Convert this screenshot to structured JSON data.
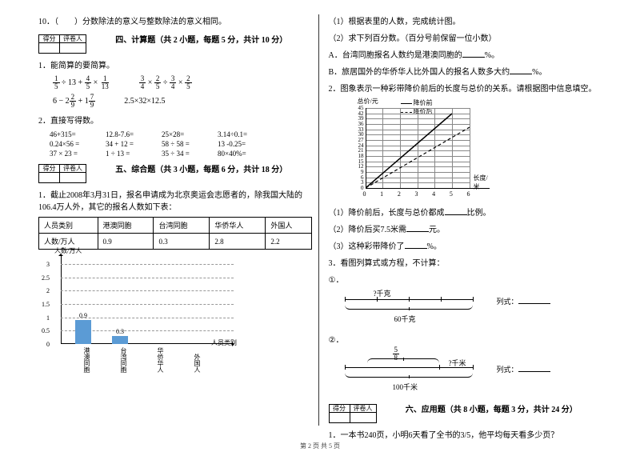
{
  "q10": "10．（　　）分数除法的意义与整数除法的意义相同。",
  "scorebox": {
    "c1": "得分",
    "c2": "评卷人"
  },
  "section4": "四、计算题（共 2 小题，每题 5 分，共计 10 分）",
  "s4q1": "1．能简算的要简算。",
  "s4q2": "2．直接写得数。",
  "expr_right1": "2.5×32×12.5",
  "calc_rows": [
    [
      "46+315=",
      "12.8-7.6=",
      "25×28=",
      " 3.14÷0.1="
    ],
    [
      "0.24×56 =",
      " 34 + 12 =",
      " 58 ÷ 58 =",
      " 13 -0.25="
    ],
    [
      "37 × 23 =",
      " 1 ÷ 13 =",
      " 35 ÷ 34 =",
      " 80×40%="
    ]
  ],
  "section5": "五、综合题（共 3 小题，每题 6 分，共计 18 分）",
  "s5q1": "1．截止2008年3月31日，报名申请成为北京奥运会志愿者的，除我国大陆的106.4万人外，其它的报名人数如下表：",
  "table5": {
    "headers": [
      "人员类别",
      "港澳同胞",
      "台湾同胞",
      "华侨华人",
      "外国人"
    ],
    "row": [
      "人数/万人",
      "0.9",
      "0.3",
      "2.8",
      "2.2"
    ]
  },
  "bar_chart": {
    "y_label": "人数/万人",
    "x_label": "人员类别",
    "y_ticks": [
      "0",
      "0.5",
      "1",
      "1.5",
      "2",
      "2.5",
      "3"
    ],
    "categories": [
      "港澳同胞",
      "台湾同胞",
      "华侨华人",
      "外国人"
    ],
    "values": [
      0.9,
      0.3,
      null,
      null
    ],
    "value_labels": [
      "0.9",
      "0.3",
      "",
      ""
    ],
    "bar_color": "#5b9bd5",
    "y_max": 3
  },
  "right": {
    "q1_sub": [
      "（1）根据表里的人数，完成统计图。",
      "（2）求下列百分数。（百分号前保留一位小数）",
      "A．台湾同胞报名人数约是港澳同胞的______%。",
      "B．旅居国外的华侨华人比外国人的报名人数多大约______%。"
    ],
    "q2": "2．图象表示一种彩带降价前后的长度与总价的关系。请根据图中信息填空。",
    "line_chart": {
      "x_label": "长度/米",
      "y_label": "总价/元",
      "legend": [
        "降价前",
        "降价后"
      ],
      "x_ticks": [
        "0",
        "1",
        "2",
        "3",
        "4",
        "5",
        "6"
      ],
      "y_ticks": [
        "0",
        "3",
        "6",
        "9",
        "12",
        "15",
        "18",
        "21",
        "24",
        "27",
        "30",
        "33",
        "36",
        "39",
        "42",
        "45"
      ],
      "x_max": 6,
      "y_max": 45,
      "series1": [
        [
          0,
          0
        ],
        [
          5,
          42
        ]
      ],
      "series2": [
        [
          0,
          0
        ],
        [
          6,
          34
        ]
      ],
      "grid_color": "#888"
    },
    "q2_sub": [
      "（1）降价前后，长度与总价都成______比例。",
      "（2）降价后买7.5米需______元。",
      "（3）这种彩带降价了______%。"
    ],
    "q3": "3．看图列算式或方程，不计算：",
    "q3_label1": "①．",
    "q3_label2": "②．",
    "diag1": {
      "top": "?千克",
      "bottom": "60千克",
      "side": "列式：______"
    },
    "diag2": {
      "frac_n": "5",
      "frac_d": "8",
      "bottom": "100千米",
      "q": "?千米",
      "side": "列式：______"
    }
  },
  "section6": "六、应用题（共 8 小题，每题 3 分，共计 24 分）",
  "s6q1": "1．一本书240页，小明6天看了全书的3/5，他平均每天看多少页？",
  "footer": "第 2 页 共 5 页"
}
